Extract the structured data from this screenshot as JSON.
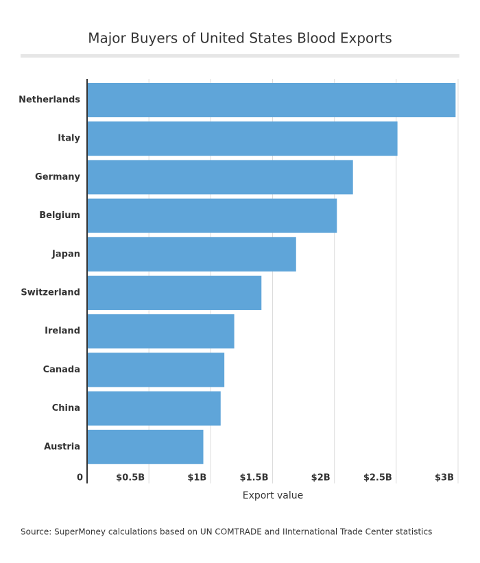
{
  "chart_data": {
    "type": "bar",
    "orientation": "horizontal",
    "title": "Major Buyers of United States Blood Exports",
    "categories": [
      "Netherlands",
      "Italy",
      "Germany",
      "Belgium",
      "Japan",
      "Switzerland",
      "Ireland",
      "Canada",
      "China",
      "Austria"
    ],
    "values": [
      2.98,
      2.51,
      2.15,
      2.02,
      1.69,
      1.41,
      1.19,
      1.11,
      1.08,
      0.94
    ],
    "color": "#5fa5d9",
    "xlim": [
      0,
      3
    ],
    "xticks": [
      0,
      {
        "value": 0.5,
        "label": "$0.5B"
      },
      {
        "value": 1,
        "label": "$1B"
      },
      {
        "value": 1.5,
        "label": "$1.5B"
      },
      {
        "value": 2,
        "label": "$2B"
      },
      {
        "value": 2.5,
        "label": "$2.5B"
      },
      {
        "value": 3,
        "label": "$3B"
      }
    ],
    "xlabel": "Export value",
    "grid": true,
    "source": "Source:  SuperMoney calculations based on UN COMTRADE and IInternational Trade Center statistics"
  }
}
